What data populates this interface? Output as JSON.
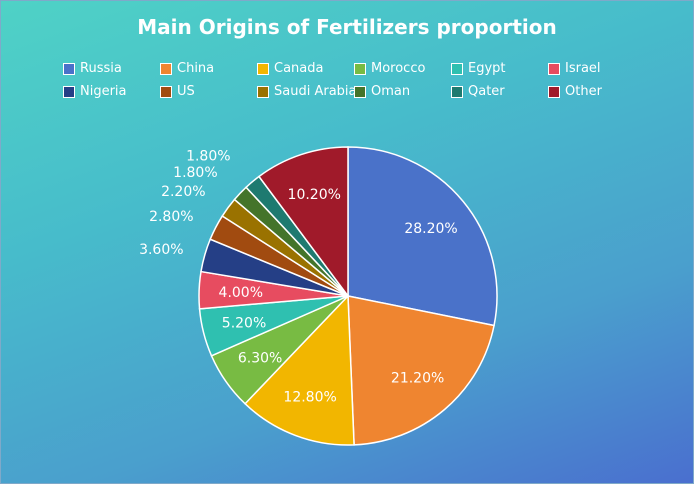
{
  "chart_data": {
    "type": "pie",
    "title": "Main Origins of Fertilizers proportion",
    "legend_position": "top",
    "categories": [
      "Russia",
      "China",
      "Canada",
      "Morocco",
      "Egypt",
      "Israel",
      "Nigeria",
      "US",
      "Saudi Arabia",
      "Oman",
      "Qater",
      "Other"
    ],
    "values": [
      28.2,
      21.2,
      12.8,
      6.3,
      5.2,
      4.0,
      3.6,
      2.8,
      2.2,
      1.8,
      1.8,
      10.2
    ],
    "labels": [
      "28.20%",
      "21.20%",
      "12.80%",
      "6.30%",
      "5.20%",
      "4.00%",
      "3.60%",
      "2.80%",
      "2.20%",
      "1.80%",
      "1.80%",
      "10.20%"
    ],
    "colors": [
      "#4a72c9",
      "#ef8530",
      "#f2b600",
      "#78bb43",
      "#2fc0b0",
      "#e74c60",
      "#253f86",
      "#a14b10",
      "#9a7200",
      "#44742a",
      "#1e7a70",
      "#a01a2a"
    ]
  }
}
